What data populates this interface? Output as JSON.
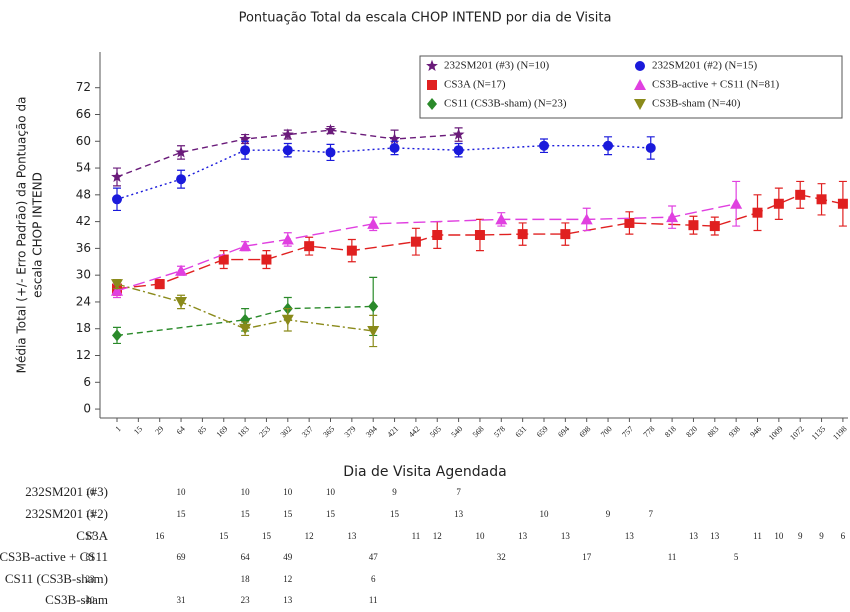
{
  "chart_data": {
    "type": "line",
    "title": "Pontuação Total da escala CHOP INTEND por dia de Visita",
    "x_label": "Dia de Visita Agendada",
    "y_label": [
      "Média Total (+/- Erro Padrão) da Pontuação da",
      "escala CHOP INTEND"
    ],
    "categories": [
      1,
      15,
      29,
      64,
      85,
      169,
      183,
      253,
      302,
      337,
      365,
      379,
      394,
      421,
      442,
      505,
      540,
      568,
      578,
      631,
      659,
      694,
      698,
      700,
      757,
      778,
      818,
      820,
      883,
      938,
      946,
      1009,
      1072,
      1135,
      1198
    ],
    "ylim": [
      -2,
      80
    ],
    "yticks": [
      0,
      6,
      12,
      18,
      24,
      30,
      36,
      42,
      48,
      54,
      60,
      66,
      72
    ],
    "legend": "upper right",
    "series": [
      {
        "name": "232SM201 (#3) (N=10)",
        "row_label": "232SM201 (#3)",
        "color": "#6a1b7a",
        "marker": "star",
        "dash": "dashed",
        "x": [
          1,
          64,
          183,
          302,
          365,
          421,
          540
        ],
        "values": [
          52,
          57.5,
          60.5,
          61.5,
          62.5,
          60.5,
          61.5
        ],
        "errors": [
          2,
          1.5,
          1,
          1,
          0.8,
          2,
          1.5
        ],
        "counts": [
          10,
          10,
          10,
          10,
          10,
          9,
          7
        ]
      },
      {
        "name": "232SM201 (#2) (N=15)",
        "row_label": "232SM201 (#2)",
        "color": "#1a1adb",
        "marker": "circle",
        "dash": "dotted",
        "x": [
          1,
          64,
          183,
          302,
          365,
          421,
          540,
          659,
          700,
          778
        ],
        "values": [
          47,
          51.5,
          58,
          58,
          57.5,
          58.5,
          58,
          59,
          59,
          58.5
        ],
        "errors": [
          2.5,
          2,
          2,
          1.5,
          1.8,
          1.5,
          1.5,
          1.5,
          2,
          2.5
        ],
        "counts": [
          15,
          15,
          15,
          15,
          15,
          15,
          13,
          10,
          9,
          7
        ]
      },
      {
        "name": "CS3A (N=17)",
        "row_label": "CS3A",
        "color": "#e02020",
        "marker": "square",
        "dash": "longdash",
        "x": [
          1,
          29,
          169,
          253,
          337,
          379,
          442,
          505,
          568,
          631,
          694,
          757,
          820,
          883,
          946,
          1009,
          1072,
          1135,
          1198
        ],
        "values": [
          27,
          28,
          33.5,
          33.5,
          36.5,
          35.5,
          37.5,
          39,
          39,
          39.2,
          39.2,
          41.7,
          41.2,
          41,
          44,
          46,
          48,
          47,
          46
        ],
        "errors": [
          1.5,
          1,
          2,
          2,
          2,
          2.5,
          3,
          3,
          3.5,
          2.5,
          2.5,
          2.5,
          2,
          2,
          4,
          3.5,
          3,
          3.5,
          5
        ],
        "counts": [
          17,
          16,
          15,
          15,
          12,
          13,
          11,
          12,
          10,
          13,
          13,
          13,
          13,
          13,
          11,
          10,
          9,
          9,
          6
        ]
      },
      {
        "name": "CS3B-active + CS11 (N=81)",
        "row_label": "CS3B-active + CS11",
        "color": "#e040e0",
        "marker": "triangle-up",
        "dash": "longdash",
        "x": [
          1,
          64,
          183,
          302,
          394,
          578,
          698,
          818,
          938
        ],
        "values": [
          26.5,
          31,
          36.5,
          38,
          41.5,
          42.5,
          42.5,
          43,
          46
        ],
        "errors": [
          1.5,
          1,
          1,
          1.5,
          1.5,
          1.5,
          2.5,
          2.5,
          5
        ],
        "counts": [
          81,
          69,
          64,
          49,
          47,
          32,
          17,
          11,
          5
        ]
      },
      {
        "name": "CS11 (CS3B-sham) (N=23)",
        "row_label": "CS11 (CS3B-sham)",
        "color": "#2a8a2a",
        "marker": "diamond",
        "dash": "dashed",
        "x": [
          1,
          183,
          302,
          394
        ],
        "values": [
          16.5,
          20,
          22.5,
          23
        ],
        "errors": [
          1.8,
          2.5,
          2.5,
          6.5
        ],
        "counts": [
          23,
          18,
          12,
          6
        ]
      },
      {
        "name": "CS3B-sham (N=40)",
        "row_label": "CS3B-sham",
        "color": "#8a8a1a",
        "marker": "triangle-down",
        "dash": "dashdot",
        "x": [
          1,
          64,
          183,
          302,
          394
        ],
        "values": [
          28,
          24,
          18,
          20,
          17.5
        ],
        "errors": [
          1,
          1.5,
          1.5,
          2.5,
          3.5
        ],
        "counts": [
          40,
          31,
          23,
          13,
          11
        ]
      }
    ]
  }
}
